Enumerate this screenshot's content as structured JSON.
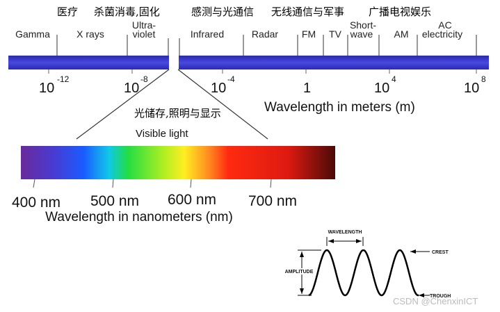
{
  "applications": [
    "医疗",
    "杀菌消毒,固化",
    "感测与光通信",
    "无线通信与军事",
    "广播电视娱乐"
  ],
  "bands": [
    {
      "lines": [
        "Gamma"
      ]
    },
    {
      "lines": [
        "X rays"
      ]
    },
    {
      "lines": [
        "Ultra-",
        "violet"
      ]
    },
    {
      "lines": [
        "Infrared"
      ]
    },
    {
      "lines": [
        "Radar"
      ]
    },
    {
      "lines": [
        "FM"
      ]
    },
    {
      "lines": [
        "TV"
      ]
    },
    {
      "lines": [
        "Short-",
        "wave"
      ]
    },
    {
      "lines": [
        "AM"
      ]
    },
    {
      "lines": [
        "AC",
        "electricity"
      ]
    }
  ],
  "meter_scale": [
    {
      "base": "10",
      "exponent": "-12"
    },
    {
      "base": "10",
      "exponent": "-8"
    },
    {
      "base": "10",
      "exponent": "-4"
    },
    {
      "base": "1"
    },
    {
      "base": "10",
      "exponent": "4"
    },
    {
      "base": "10",
      "exponent": "8"
    }
  ],
  "meter_axis_label": "Wavelength in meters (m)",
  "visible_application": "光储存,照明与显示",
  "visible_title": "Visible light",
  "nm_scale": [
    "400 nm",
    "500 nm",
    "600 nm",
    "700 nm"
  ],
  "nm_axis_label": "Wavelength in nanometers (nm)",
  "wave": {
    "wavelength": "WAVELENGTH",
    "amplitude": "AMPLITUDE",
    "crest": "CREST",
    "trough": "TROUGH"
  },
  "watermark": "CSDN @ChenxinICT"
}
